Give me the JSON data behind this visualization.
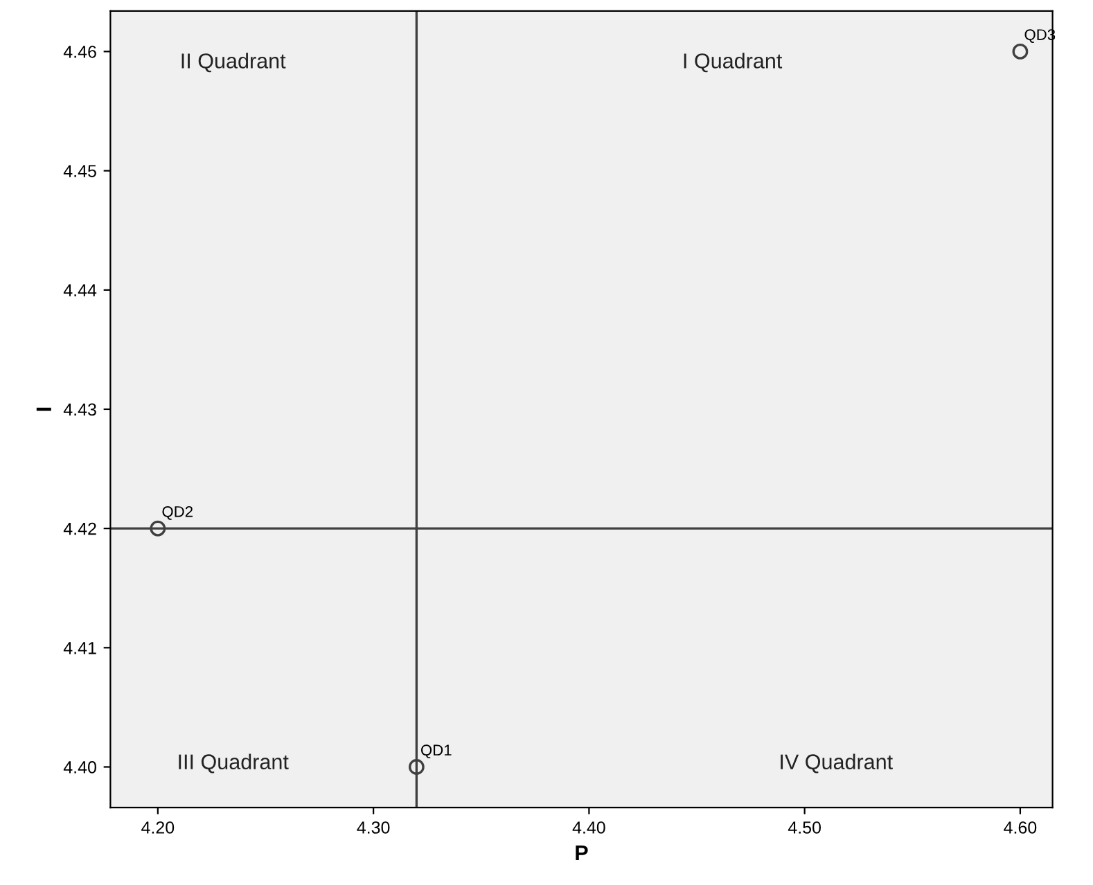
{
  "chart_data": {
    "type": "scatter",
    "xlabel": "P",
    "ylabel": "I",
    "x": [
      4.32,
      4.2,
      4.6
    ],
    "values": [
      4.4,
      4.42,
      4.46
    ],
    "value_labels": [
      "QD1",
      "QD2",
      "QD3"
    ],
    "color": "#404040",
    "marker": "circle",
    "xlim": [
      4.178,
      4.615
    ],
    "ylim": [
      4.3966,
      4.4634
    ],
    "xticks": [
      {
        "value": 4.2,
        "label": "4.20"
      },
      {
        "value": 4.3,
        "label": "4.30"
      },
      {
        "value": 4.4,
        "label": "4.40"
      },
      {
        "value": 4.5,
        "label": "4.50"
      },
      {
        "value": 4.6,
        "label": "4.60"
      }
    ],
    "yticks": [
      {
        "value": 4.4,
        "label": "4.40"
      },
      {
        "value": 4.41,
        "label": "4.41"
      },
      {
        "value": 4.42,
        "label": "4.42"
      },
      {
        "value": 4.43,
        "label": "4.43"
      },
      {
        "value": 4.44,
        "label": "4.44"
      },
      {
        "value": 4.45,
        "label": "4.45"
      },
      {
        "value": 4.46,
        "label": "4.46"
      }
    ],
    "ref_lines": [
      {
        "axis": "x",
        "value": 4.32,
        "color": "#404040"
      },
      {
        "axis": "y",
        "value": 4.42,
        "color": "#404040"
      }
    ],
    "annotations": [
      "II Quadrant",
      "I Quadrant",
      "III Quadrant",
      "IV Quadrant"
    ],
    "grid": false,
    "legend": false
  }
}
